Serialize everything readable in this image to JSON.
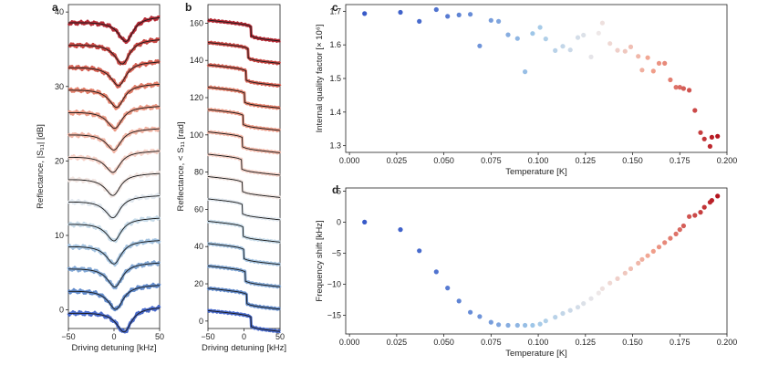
{
  "figure": {
    "panels": {
      "a": {
        "label": "a"
      },
      "b": {
        "label": "b"
      },
      "c": {
        "label": "c"
      },
      "d": {
        "label": "d"
      }
    }
  },
  "chart_data": [
    {
      "id": "a",
      "type": "line",
      "title": "",
      "xlabel": "Driving detuning [kHz]",
      "ylabel": "Reflectance, |S₁₁| [dB]",
      "xlim": [
        -50,
        50
      ],
      "ylim": [
        -2.5,
        41
      ],
      "xticks": [
        -50,
        0,
        50
      ],
      "yticks": [
        0,
        10,
        20,
        30,
        40
      ],
      "series_description": "14 resonance traces (measured + fit), offset by 3 dB each, colored blue (low T) to red (high T)",
      "offsets": [
        0,
        3,
        6,
        9,
        12,
        15,
        18,
        21,
        24,
        27,
        30,
        33,
        36,
        39
      ],
      "colors": [
        "#3f62c8",
        "#5b86c9",
        "#7ca3d3",
        "#9fc0de",
        "#c4d9e8",
        "#dfe7ee",
        "#f0e4df",
        "#f4cfc4",
        "#f1b2a1",
        "#eb9580",
        "#e17862",
        "#d4594b",
        "#c43c38",
        "#b01f2a"
      ],
      "dip_depths_db": [
        -3.0,
        -2.9,
        -2.9,
        -2.8,
        -2.7,
        -2.6,
        -2.6,
        -2.5,
        -2.5,
        -2.6,
        -2.8,
        -2.9,
        -3.0,
        -3.0
      ],
      "dip_positions_khz": [
        12,
        3,
        2,
        1,
        1,
        0,
        0,
        0,
        1,
        2,
        4,
        6,
        10,
        14
      ]
    },
    {
      "id": "b",
      "type": "line",
      "title": "",
      "xlabel": "Driving detuning [kHz]",
      "ylabel": "Reflectance, < S₁₁ [rad]",
      "xlim": [
        -50,
        50
      ],
      "ylim": [
        -4,
        170
      ],
      "xticks": [
        -50,
        0,
        50
      ],
      "yticks": [
        0,
        20,
        40,
        60,
        80,
        100,
        120,
        140,
        160
      ],
      "offsets": [
        0,
        12,
        24,
        36,
        48,
        60,
        72,
        84,
        96,
        108,
        120,
        132,
        144,
        156
      ],
      "jump_positions_khz": [
        10,
        4,
        2,
        0,
        -1,
        -2,
        -2,
        -3,
        -2,
        -1,
        1,
        3,
        6,
        10
      ]
    },
    {
      "id": "c",
      "type": "scatter",
      "title": "",
      "xlabel": "Temperature [K]",
      "ylabel": "Internal quality factor [× 10⁶]",
      "xlim": [
        -0.002,
        0.2
      ],
      "ylim": [
        1.28,
        1.72
      ],
      "xticks": [
        0.0,
        0.025,
        0.05,
        0.075,
        0.1,
        0.125,
        0.15,
        0.175,
        0.2
      ],
      "xtick_labels": [
        "0.000",
        "0.025",
        "0.050",
        "0.075",
        "0.100",
        "0.125",
        "0.150",
        "0.175",
        "0.200"
      ],
      "yticks": [
        1.3,
        1.4,
        1.5,
        1.6,
        1.7
      ],
      "ytick_labels": [
        "1.3",
        "1.4",
        "1.5",
        "1.6",
        "1.7"
      ],
      "x": [
        0.008,
        0.027,
        0.037,
        0.046,
        0.052,
        0.058,
        0.064,
        0.069,
        0.075,
        0.079,
        0.084,
        0.089,
        0.093,
        0.097,
        0.101,
        0.104,
        0.109,
        0.113,
        0.117,
        0.121,
        0.124,
        0.128,
        0.132,
        0.134,
        0.138,
        0.142,
        0.146,
        0.149,
        0.153,
        0.155,
        0.158,
        0.161,
        0.164,
        0.167,
        0.17,
        0.173,
        0.175,
        0.177,
        0.18,
        0.183,
        0.186,
        0.188,
        0.191,
        0.192,
        0.195
      ],
      "y": [
        1.693,
        1.697,
        1.67,
        1.705,
        1.685,
        1.689,
        1.691,
        1.597,
        1.673,
        1.67,
        1.63,
        1.619,
        1.52,
        1.634,
        1.652,
        1.618,
        1.583,
        1.596,
        1.585,
        1.622,
        1.629,
        1.564,
        1.635,
        1.665,
        1.604,
        1.584,
        1.581,
        1.594,
        1.566,
        1.525,
        1.562,
        1.522,
        1.545,
        1.545,
        1.496,
        1.474,
        1.474,
        1.47,
        1.465,
        1.405,
        1.339,
        1.32,
        1.298,
        1.325,
        1.328
      ]
    },
    {
      "id": "d",
      "type": "scatter",
      "title": "",
      "xlabel": "Temperature [K]",
      "ylabel": "Frequency shift [kHz]",
      "xlim": [
        -0.002,
        0.2
      ],
      "ylim": [
        -18,
        5.5
      ],
      "xticks": [
        0.0,
        0.025,
        0.05,
        0.075,
        0.1,
        0.125,
        0.15,
        0.175,
        0.2
      ],
      "xtick_labels": [
        "0.000",
        "0.025",
        "0.050",
        "0.075",
        "0.100",
        "0.125",
        "0.150",
        "0.175",
        "0.200"
      ],
      "yticks": [
        -15,
        -10,
        -5,
        0,
        5
      ],
      "ytick_labels": [
        "−15",
        "−10",
        "−5",
        "0",
        "5"
      ],
      "x": [
        0.008,
        0.027,
        0.037,
        0.046,
        0.052,
        0.058,
        0.064,
        0.069,
        0.075,
        0.079,
        0.084,
        0.089,
        0.093,
        0.097,
        0.101,
        0.104,
        0.109,
        0.113,
        0.117,
        0.121,
        0.124,
        0.128,
        0.132,
        0.134,
        0.138,
        0.142,
        0.146,
        0.149,
        0.153,
        0.155,
        0.158,
        0.161,
        0.164,
        0.167,
        0.17,
        0.173,
        0.175,
        0.177,
        0.18,
        0.183,
        0.186,
        0.188,
        0.191,
        0.192,
        0.195
      ],
      "y": [
        0.0,
        -1.2,
        -4.6,
        -8.0,
        -10.6,
        -12.7,
        -14.5,
        -15.2,
        -16.1,
        -16.5,
        -16.6,
        -16.6,
        -16.6,
        -16.6,
        -16.4,
        -15.9,
        -15.3,
        -14.7,
        -14.2,
        -13.7,
        -13.1,
        -12.3,
        -11.4,
        -10.7,
        -9.8,
        -9.1,
        -8.2,
        -7.5,
        -6.6,
        -6.0,
        -5.4,
        -4.7,
        -4.0,
        -3.3,
        -2.6,
        -1.9,
        -1.2,
        -0.6,
        0.9,
        1.1,
        1.6,
        2.4,
        3.2,
        3.5,
        4.2
      ]
    }
  ]
}
